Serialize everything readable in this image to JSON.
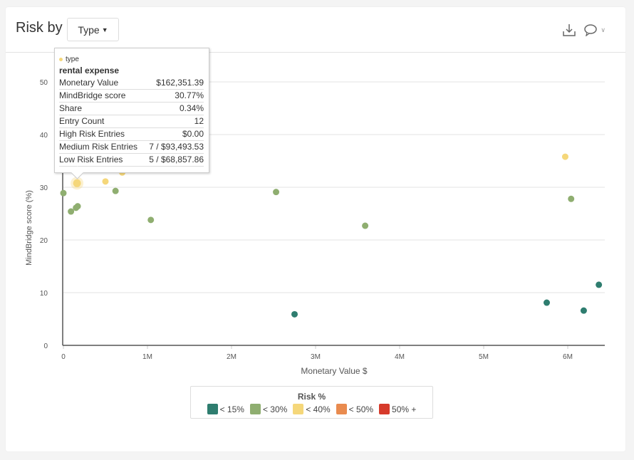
{
  "header": {
    "title": "Risk by",
    "dropdown_label": "Type",
    "icons": [
      "download-icon",
      "comment-icon",
      "chevron-down-icon"
    ]
  },
  "tooltip": {
    "series": "type",
    "name": "rental expense",
    "rows": [
      {
        "label": "Monetary Value",
        "value": "$162,351.39"
      },
      {
        "label": "MindBridge score",
        "value": "30.77%"
      },
      {
        "label": "Share",
        "value": "0.34%"
      },
      {
        "label": "Entry Count",
        "value": "12"
      },
      {
        "label": "High Risk Entries",
        "value": "$0.00"
      },
      {
        "label": "Medium Risk Entries",
        "value": "7 / $93,493.53"
      },
      {
        "label": "Low Risk Entries",
        "value": "5 / $68,857.86"
      }
    ]
  },
  "chart_data": {
    "type": "scatter",
    "xlabel": "Monetary Value $",
    "ylabel": "MindBridge score (%)",
    "xlim": [
      0,
      6.4
    ],
    "ylim": [
      0,
      50
    ],
    "xticks": [
      {
        "v": 0,
        "label": "0"
      },
      {
        "v": 1,
        "label": "1M"
      },
      {
        "v": 2,
        "label": "2M"
      },
      {
        "v": 3,
        "label": "3M"
      },
      {
        "v": 4,
        "label": "4M"
      },
      {
        "v": 5,
        "label": "5M"
      },
      {
        "v": 6,
        "label": "6M"
      }
    ],
    "yticks": [
      {
        "v": 0,
        "label": "0"
      },
      {
        "v": 10,
        "label": "10"
      },
      {
        "v": 20,
        "label": "20"
      },
      {
        "v": 30,
        "label": "30"
      },
      {
        "v": 40,
        "label": "40"
      },
      {
        "v": 50,
        "label": "50"
      }
    ],
    "x_unit": "millions",
    "grid": true,
    "points": [
      {
        "x": 0.0,
        "y": 28.9,
        "c": 1
      },
      {
        "x": 0.09,
        "y": 25.4,
        "c": 1
      },
      {
        "x": 0.15,
        "y": 26.1,
        "c": 1
      },
      {
        "x": 0.17,
        "y": 26.4,
        "c": 1
      },
      {
        "x": 0.5,
        "y": 31.1,
        "c": 2
      },
      {
        "x": 0.62,
        "y": 29.3,
        "c": 1
      },
      {
        "x": 0.7,
        "y": 32.8,
        "c": 2
      },
      {
        "x": 1.25,
        "y": 34.1,
        "c": 2
      },
      {
        "x": 1.04,
        "y": 23.8,
        "c": 1
      },
      {
        "x": 2.53,
        "y": 29.1,
        "c": 1
      },
      {
        "x": 2.75,
        "y": 5.9,
        "c": 0
      },
      {
        "x": 3.59,
        "y": 22.7,
        "c": 1
      },
      {
        "x": 5.75,
        "y": 8.1,
        "c": 0
      },
      {
        "x": 5.97,
        "y": 35.8,
        "c": 2
      },
      {
        "x": 6.04,
        "y": 27.8,
        "c": 1
      },
      {
        "x": 6.19,
        "y": 6.6,
        "c": 0
      },
      {
        "x": 6.37,
        "y": 11.5,
        "c": 0
      },
      {
        "x": 0.162,
        "y": 30.77,
        "c": 2,
        "highlight": true
      }
    ],
    "legend": {
      "title": "Risk %",
      "placement": "bottom",
      "items": [
        {
          "label": "< 15%",
          "color": "#2e7d6f"
        },
        {
          "label": "< 30%",
          "color": "#8fae70"
        },
        {
          "label": "< 40%",
          "color": "#f5d77a"
        },
        {
          "label": "< 50%",
          "color": "#e98b4f"
        },
        {
          "label": "50% +",
          "color": "#d63a2b"
        }
      ]
    }
  }
}
